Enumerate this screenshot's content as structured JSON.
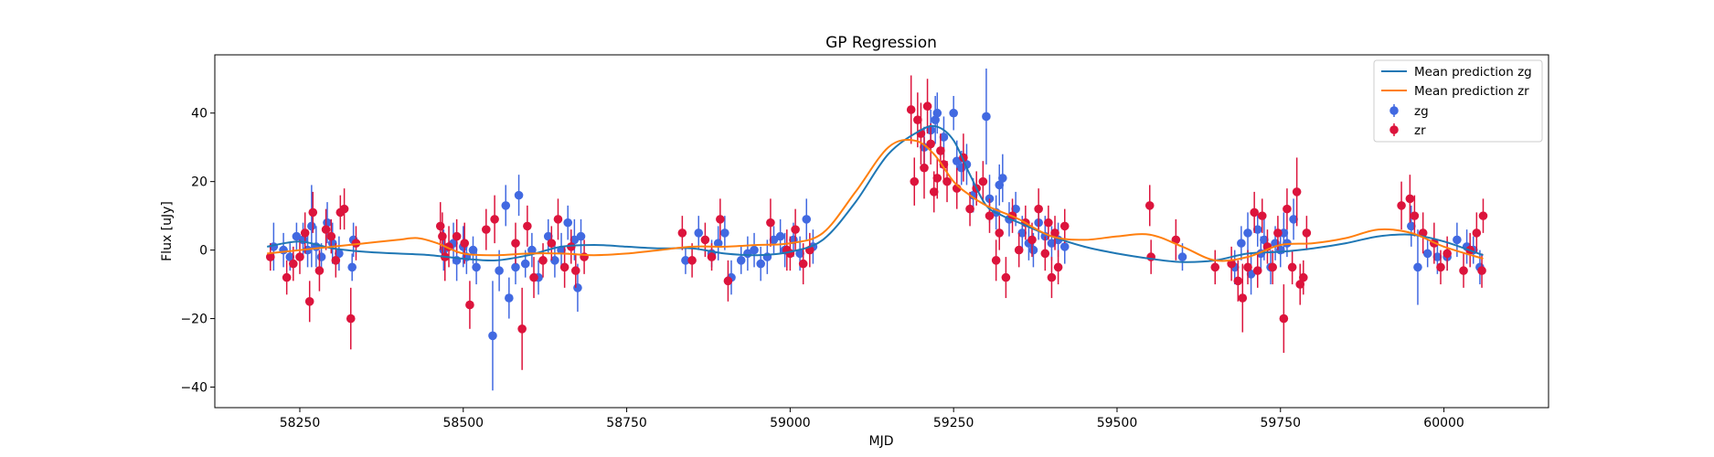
{
  "chart_data": {
    "type": "scatter",
    "title": "GP Regression",
    "xlabel": "MJD",
    "ylabel": "Flux [uJy]",
    "xlim": [
      58120,
      60160
    ],
    "ylim": [
      -46,
      57
    ],
    "xticks": [
      58250,
      58500,
      58750,
      59000,
      59250,
      59500,
      59750,
      60000
    ],
    "yticks": [
      -40,
      -20,
      0,
      20,
      40
    ],
    "grid": false,
    "legend_position": "top-right",
    "lines": [
      {
        "name": "Mean prediction zg",
        "color": "#1f77b4",
        "x": [
          58200,
          58250,
          58300,
          58350,
          58400,
          58450,
          58500,
          58550,
          58600,
          58650,
          58700,
          58750,
          58800,
          58850,
          58900,
          58950,
          59000,
          59050,
          59100,
          59150,
          59200,
          59225,
          59250,
          59275,
          59300,
          59325,
          59350,
          59400,
          59450,
          59500,
          59550,
          59600,
          59650,
          59700,
          59750,
          59800,
          59850,
          59900,
          59950,
          60000,
          60060
        ],
        "y": [
          1,
          2.5,
          0.5,
          -0.5,
          -1,
          -1.5,
          -2.5,
          -3,
          -1.5,
          1,
          1.5,
          1,
          0.5,
          0.5,
          -1,
          -1.5,
          -0.5,
          3,
          14,
          28,
          35,
          36,
          32,
          22,
          13,
          10,
          8,
          4,
          1,
          -1,
          -2.5,
          -3.5,
          -3,
          -1,
          -0.5,
          0.5,
          2,
          4,
          4.5,
          2.5,
          -1.5
        ]
      },
      {
        "name": "Mean prediction zr",
        "color": "#ff7f0e",
        "x": [
          58200,
          58250,
          58300,
          58350,
          58400,
          58430,
          58460,
          58500,
          58550,
          58600,
          58650,
          58700,
          58750,
          58800,
          58850,
          58900,
          58950,
          59000,
          59050,
          59100,
          59150,
          59190,
          59220,
          59250,
          59275,
          59300,
          59325,
          59350,
          59400,
          59450,
          59500,
          59550,
          59600,
          59650,
          59700,
          59750,
          59800,
          59850,
          59900,
          59950,
          60000,
          60060
        ],
        "y": [
          -1,
          0,
          1,
          2,
          3,
          3.5,
          2,
          -1,
          -1.5,
          -1,
          -1,
          -1.5,
          -1,
          0,
          1,
          1,
          1.5,
          2,
          5,
          17,
          30,
          32,
          28,
          20,
          16,
          13,
          11,
          9,
          4,
          3,
          4,
          4.5,
          1,
          -3,
          -2,
          1.5,
          2,
          3.5,
          6,
          5,
          1,
          -2.5
        ]
      }
    ],
    "series": [
      {
        "name": "zg",
        "color": "#4169e1",
        "points": [
          [
            58210,
            1,
            7
          ],
          [
            58225,
            0,
            5
          ],
          [
            58235,
            -2,
            4
          ],
          [
            58245,
            4,
            4
          ],
          [
            58255,
            3,
            5
          ],
          [
            58262,
            0,
            5
          ],
          [
            58268,
            7,
            12
          ],
          [
            58275,
            1,
            6
          ],
          [
            58283,
            -2,
            4
          ],
          [
            58292,
            8,
            6
          ],
          [
            58300,
            2,
            6
          ],
          [
            58310,
            -1,
            5
          ],
          [
            58330,
            -5,
            4
          ],
          [
            58332,
            3,
            5
          ],
          [
            58470,
            0,
            6
          ],
          [
            58485,
            2,
            6
          ],
          [
            58490,
            -3,
            6
          ],
          [
            58500,
            1,
            6
          ],
          [
            58505,
            -2,
            5
          ],
          [
            58515,
            0,
            4
          ],
          [
            58520,
            -5,
            5
          ],
          [
            58545,
            -25,
            16
          ],
          [
            58555,
            -6,
            6
          ],
          [
            58565,
            13,
            6
          ],
          [
            58570,
            -14,
            6
          ],
          [
            58580,
            -5,
            5
          ],
          [
            58585,
            16,
            6
          ],
          [
            58595,
            -4,
            4
          ],
          [
            58605,
            0,
            5
          ],
          [
            58615,
            -8,
            5
          ],
          [
            58630,
            4,
            5
          ],
          [
            58640,
            -3,
            5
          ],
          [
            58650,
            0,
            5
          ],
          [
            58660,
            8,
            5
          ],
          [
            58670,
            3,
            6
          ],
          [
            58675,
            -11,
            7
          ],
          [
            58680,
            4,
            5
          ],
          [
            58840,
            -3,
            4
          ],
          [
            58860,
            5,
            5
          ],
          [
            58880,
            -1,
            4
          ],
          [
            58890,
            2,
            5
          ],
          [
            58900,
            5,
            5
          ],
          [
            58910,
            -8,
            5
          ],
          [
            58925,
            -3,
            4
          ],
          [
            58935,
            -1,
            5
          ],
          [
            58945,
            0,
            5
          ],
          [
            58955,
            -4,
            5
          ],
          [
            58965,
            -2,
            5
          ],
          [
            58975,
            3,
            4
          ],
          [
            58985,
            4,
            5
          ],
          [
            58992,
            0,
            5
          ],
          [
            59005,
            3,
            5
          ],
          [
            59015,
            -1,
            5
          ],
          [
            59025,
            9,
            6
          ],
          [
            59035,
            1,
            5
          ],
          [
            59205,
            30,
            6
          ],
          [
            59215,
            35,
            6
          ],
          [
            59222,
            38,
            7
          ],
          [
            59225,
            40,
            6
          ],
          [
            59235,
            33,
            6
          ],
          [
            59250,
            40,
            5
          ],
          [
            59255,
            26,
            6
          ],
          [
            59262,
            24,
            5
          ],
          [
            59270,
            25,
            6
          ],
          [
            59280,
            16,
            5
          ],
          [
            59300,
            39,
            14
          ],
          [
            59305,
            15,
            7
          ],
          [
            59315,
            11,
            5
          ],
          [
            59320,
            19,
            6
          ],
          [
            59325,
            21,
            7
          ],
          [
            59335,
            9,
            5
          ],
          [
            59345,
            12,
            5
          ],
          [
            59355,
            5,
            5
          ],
          [
            59365,
            2,
            5
          ],
          [
            59372,
            0,
            5
          ],
          [
            59380,
            8,
            5
          ],
          [
            59390,
            4,
            6
          ],
          [
            59400,
            2,
            5
          ],
          [
            59410,
            3,
            5
          ],
          [
            59420,
            1,
            5
          ],
          [
            59600,
            -2,
            4
          ],
          [
            59680,
            -5,
            5
          ],
          [
            59690,
            2,
            5
          ],
          [
            59700,
            5,
            6
          ],
          [
            59705,
            -7,
            6
          ],
          [
            59715,
            6,
            5
          ],
          [
            59720,
            -1,
            5
          ],
          [
            59725,
            3,
            6
          ],
          [
            59735,
            -5,
            5
          ],
          [
            59742,
            2,
            5
          ],
          [
            59750,
            0,
            5
          ],
          [
            59755,
            5,
            6
          ],
          [
            59760,
            2,
            4
          ],
          [
            59770,
            9,
            6
          ],
          [
            59950,
            7,
            6
          ],
          [
            59960,
            -5,
            11
          ],
          [
            59975,
            -1,
            4
          ],
          [
            59990,
            -2,
            5
          ],
          [
            60005,
            -2,
            4
          ],
          [
            60020,
            3,
            5
          ],
          [
            60035,
            1,
            5
          ],
          [
            60045,
            0,
            4
          ],
          [
            60055,
            -5,
            5
          ]
        ]
      },
      {
        "name": "zr",
        "color": "#dc143c",
        "points": [
          [
            58205,
            -2,
            4
          ],
          [
            58230,
            -8,
            5
          ],
          [
            58240,
            -4,
            5
          ],
          [
            58250,
            -2,
            5
          ],
          [
            58258,
            5,
            6
          ],
          [
            58265,
            -15,
            6
          ],
          [
            58270,
            11,
            6
          ],
          [
            58280,
            -6,
            6
          ],
          [
            58290,
            6,
            6
          ],
          [
            58298,
            4,
            5
          ],
          [
            58305,
            -3,
            5
          ],
          [
            58312,
            11,
            5
          ],
          [
            58318,
            12,
            6
          ],
          [
            58328,
            -20,
            9
          ],
          [
            58336,
            2,
            5
          ],
          [
            58465,
            7,
            7
          ],
          [
            58468,
            4,
            7
          ],
          [
            58472,
            -2,
            7
          ],
          [
            58478,
            1,
            6
          ],
          [
            58490,
            4,
            5
          ],
          [
            58502,
            2,
            6
          ],
          [
            58510,
            -16,
            7
          ],
          [
            58535,
            6,
            6
          ],
          [
            58548,
            9,
            7
          ],
          [
            58580,
            2,
            6
          ],
          [
            58590,
            -23,
            12
          ],
          [
            58598,
            7,
            6
          ],
          [
            58608,
            -8,
            6
          ],
          [
            58622,
            -3,
            5
          ],
          [
            58635,
            2,
            5
          ],
          [
            58645,
            9,
            6
          ],
          [
            58655,
            -5,
            6
          ],
          [
            58665,
            1,
            5
          ],
          [
            58672,
            -6,
            5
          ],
          [
            58685,
            -2,
            5
          ],
          [
            58835,
            5,
            5
          ],
          [
            58850,
            -3,
            5
          ],
          [
            58870,
            3,
            5
          ],
          [
            58880,
            -2,
            4
          ],
          [
            58893,
            9,
            6
          ],
          [
            58905,
            -9,
            6
          ],
          [
            58970,
            8,
            7
          ],
          [
            58995,
            0,
            6
          ],
          [
            59000,
            -1,
            5
          ],
          [
            59008,
            6,
            6
          ],
          [
            59020,
            -4,
            6
          ],
          [
            59030,
            0,
            5
          ],
          [
            59185,
            41,
            10
          ],
          [
            59190,
            20,
            7
          ],
          [
            59195,
            38,
            8
          ],
          [
            59200,
            34,
            9
          ],
          [
            59205,
            24,
            9
          ],
          [
            59210,
            42,
            8
          ],
          [
            59215,
            31,
            6
          ],
          [
            59220,
            17,
            6
          ],
          [
            59225,
            21,
            6
          ],
          [
            59230,
            29,
            5
          ],
          [
            59235,
            25,
            5
          ],
          [
            59240,
            20,
            6
          ],
          [
            59255,
            18,
            6
          ],
          [
            59265,
            27,
            7
          ],
          [
            59275,
            12,
            5
          ],
          [
            59285,
            18,
            5
          ],
          [
            59295,
            20,
            6
          ],
          [
            59305,
            10,
            5
          ],
          [
            59315,
            -3,
            6
          ],
          [
            59320,
            5,
            5
          ],
          [
            59330,
            -8,
            6
          ],
          [
            59340,
            10,
            5
          ],
          [
            59350,
            0,
            5
          ],
          [
            59360,
            8,
            5
          ],
          [
            59370,
            3,
            5
          ],
          [
            59380,
            12,
            6
          ],
          [
            59390,
            -1,
            5
          ],
          [
            59395,
            8,
            5
          ],
          [
            59400,
            -8,
            6
          ],
          [
            59405,
            5,
            5
          ],
          [
            59410,
            -5,
            5
          ],
          [
            59420,
            7,
            5
          ],
          [
            59550,
            13,
            6
          ],
          [
            59552,
            -2,
            5
          ],
          [
            59590,
            3,
            6
          ],
          [
            59650,
            -5,
            5
          ],
          [
            59675,
            -4,
            5
          ],
          [
            59685,
            -9,
            6
          ],
          [
            59692,
            -14,
            10
          ],
          [
            59700,
            -5,
            5
          ],
          [
            59710,
            11,
            6
          ],
          [
            59715,
            -6,
            5
          ],
          [
            59722,
            10,
            5
          ],
          [
            59730,
            1,
            5
          ],
          [
            59738,
            -5,
            5
          ],
          [
            59746,
            5,
            5
          ],
          [
            59755,
            -20,
            10
          ],
          [
            59760,
            12,
            6
          ],
          [
            59768,
            -5,
            5
          ],
          [
            59775,
            17,
            10
          ],
          [
            59780,
            -10,
            6
          ],
          [
            59785,
            -8,
            5
          ],
          [
            59790,
            5,
            5
          ],
          [
            59935,
            13,
            7
          ],
          [
            59948,
            15,
            7
          ],
          [
            59955,
            10,
            6
          ],
          [
            59968,
            5,
            6
          ],
          [
            59985,
            2,
            6
          ],
          [
            59995,
            -5,
            5
          ],
          [
            60005,
            -1,
            5
          ],
          [
            60030,
            -6,
            5
          ],
          [
            60040,
            0,
            5
          ],
          [
            60050,
            5,
            6
          ],
          [
            60058,
            -6,
            5
          ],
          [
            60060,
            10,
            5
          ]
        ]
      }
    ]
  }
}
